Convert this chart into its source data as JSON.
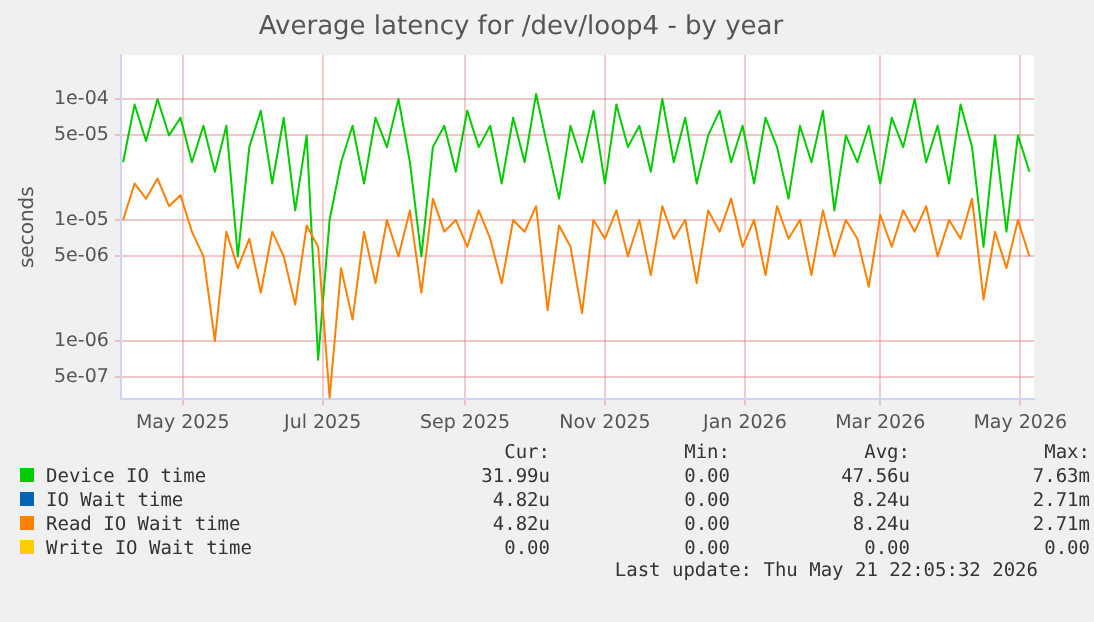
{
  "chart_data": {
    "type": "line",
    "title": "Average latency for /dev/loop4 - by year",
    "ylabel": "seconds",
    "log": "y",
    "grid": true,
    "legend": "bottom",
    "marker": "none",
    "line_style": "solid",
    "xlim": [
      "2025-04-19",
      "2026-05-22"
    ],
    "xticks": [
      {
        "value": "2025-05-16",
        "label": "May 2025"
      },
      {
        "value": "2025-07-16",
        "label": "Jul 2025"
      },
      {
        "value": "2025-09-16",
        "label": "Sep 2025"
      },
      {
        "value": "2025-11-16",
        "label": "Nov 2025"
      },
      {
        "value": "2026-01-16",
        "label": "Jan 2026"
      },
      {
        "value": "2026-03-16",
        "label": "Mar 2026"
      },
      {
        "value": "2026-05-16",
        "label": "May 2026"
      }
    ],
    "ylim": [
      3.3e-07,
      0.00023
    ],
    "yticks": [
      {
        "value": 5e-07,
        "label": "5e-07"
      },
      {
        "value": 1e-06,
        "label": "1e-06"
      },
      {
        "value": 5e-06,
        "label": "5e-06"
      },
      {
        "value": 1e-05,
        "label": "1e-05"
      },
      {
        "value": 5e-05,
        "label": "5e-05"
      },
      {
        "value": 0.0001,
        "label": "1e-04"
      }
    ],
    "x": [
      "2025-04-20",
      "2025-04-25",
      "2025-04-30",
      "2025-05-05",
      "2025-05-10",
      "2025-05-15",
      "2025-05-20",
      "2025-05-25",
      "2025-05-30",
      "2025-06-04",
      "2025-06-09",
      "2025-06-14",
      "2025-06-19",
      "2025-06-24",
      "2025-06-29",
      "2025-07-04",
      "2025-07-09",
      "2025-07-14",
      "2025-07-19",
      "2025-07-24",
      "2025-07-29",
      "2025-08-03",
      "2025-08-08",
      "2025-08-13",
      "2025-08-18",
      "2025-08-23",
      "2025-08-28",
      "2025-09-02",
      "2025-09-07",
      "2025-09-12",
      "2025-09-17",
      "2025-09-22",
      "2025-09-27",
      "2025-10-02",
      "2025-10-07",
      "2025-10-12",
      "2025-10-17",
      "2025-10-22",
      "2025-10-27",
      "2025-11-01",
      "2025-11-06",
      "2025-11-11",
      "2025-11-16",
      "2025-11-21",
      "2025-11-26",
      "2025-12-01",
      "2025-12-06",
      "2025-12-11",
      "2025-12-16",
      "2025-12-21",
      "2025-12-26",
      "2025-12-31",
      "2026-01-05",
      "2026-01-10",
      "2026-01-15",
      "2026-01-20",
      "2026-01-25",
      "2026-01-30",
      "2026-02-04",
      "2026-02-09",
      "2026-02-14",
      "2026-02-19",
      "2026-02-24",
      "2026-03-01",
      "2026-03-06",
      "2026-03-11",
      "2026-03-16",
      "2026-03-21",
      "2026-03-26",
      "2026-03-31",
      "2026-04-05",
      "2026-04-10",
      "2026-04-15",
      "2026-04-20",
      "2026-04-25",
      "2026-04-30",
      "2026-05-05",
      "2026-05-10",
      "2026-05-15",
      "2026-05-20"
    ],
    "series": [
      {
        "name": "Device IO time",
        "color": "#00cc00",
        "values": [
          3e-05,
          9e-05,
          4.5e-05,
          0.0001,
          5e-05,
          7e-05,
          3e-05,
          6e-05,
          2.5e-05,
          6e-05,
          5e-06,
          4e-05,
          8e-05,
          2e-05,
          7e-05,
          1.2e-05,
          5e-05,
          7e-07,
          1e-05,
          3e-05,
          6e-05,
          2e-05,
          7e-05,
          4e-05,
          0.0001,
          3e-05,
          5e-06,
          4e-05,
          6e-05,
          2.5e-05,
          8e-05,
          4e-05,
          6e-05,
          2e-05,
          7e-05,
          3e-05,
          0.00011,
          4e-05,
          1.5e-05,
          6e-05,
          3e-05,
          8e-05,
          2e-05,
          9e-05,
          4e-05,
          6e-05,
          2.5e-05,
          0.0001,
          3e-05,
          7e-05,
          2e-05,
          5e-05,
          8e-05,
          3e-05,
          6e-05,
          2e-05,
          7e-05,
          4e-05,
          1.5e-05,
          6e-05,
          3e-05,
          8e-05,
          1.2e-05,
          5e-05,
          3e-05,
          6e-05,
          2e-05,
          7e-05,
          4e-05,
          0.0001,
          3e-05,
          6e-05,
          2e-05,
          9e-05,
          4e-05,
          6e-06,
          5e-05,
          8e-06,
          5e-05,
          2.5e-05
        ]
      },
      {
        "name": "IO Wait time",
        "color": "#0066b3",
        "values": [
          null,
          null,
          null,
          null,
          null,
          null,
          null,
          null,
          null,
          null,
          null,
          null,
          null,
          null,
          null,
          null,
          null,
          null,
          null,
          null,
          null,
          null,
          null,
          null,
          null,
          null,
          null,
          null,
          null,
          null,
          null,
          null,
          null,
          null,
          null,
          null,
          null,
          null,
          null,
          null,
          null,
          null,
          null,
          null,
          null,
          null,
          null,
          null,
          null,
          null,
          null,
          null,
          null,
          null,
          null,
          null,
          null,
          null,
          null,
          null,
          null,
          null,
          null,
          null,
          null,
          null,
          null,
          null,
          null,
          null,
          null,
          null,
          null,
          null,
          null,
          null,
          null,
          null,
          null,
          null
        ]
      },
      {
        "name": "Read IO Wait time",
        "color": "#ff8000",
        "values": [
          1e-05,
          2e-05,
          1.5e-05,
          2.2e-05,
          1.3e-05,
          1.6e-05,
          8e-06,
          5e-06,
          1e-06,
          8e-06,
          4e-06,
          7e-06,
          2.5e-06,
          8e-06,
          5e-06,
          2e-06,
          9e-06,
          6e-06,
          3.4e-07,
          4e-06,
          1.5e-06,
          8e-06,
          3e-06,
          1e-05,
          5e-06,
          1.2e-05,
          2.5e-06,
          1.5e-05,
          8e-06,
          1e-05,
          6e-06,
          1.2e-05,
          7e-06,
          3e-06,
          1e-05,
          8e-06,
          1.3e-05,
          1.8e-06,
          9e-06,
          6e-06,
          1.7e-06,
          1e-05,
          7e-06,
          1.2e-05,
          5e-06,
          1e-05,
          3.5e-06,
          1.3e-05,
          7e-06,
          1e-05,
          3e-06,
          1.2e-05,
          8e-06,
          1.5e-05,
          6e-06,
          1e-05,
          3.5e-06,
          1.3e-05,
          7e-06,
          1e-05,
          3.5e-06,
          1.2e-05,
          5e-06,
          1e-05,
          7e-06,
          2.8e-06,
          1.1e-05,
          6e-06,
          1.2e-05,
          8e-06,
          1.3e-05,
          5e-06,
          1e-05,
          7e-06,
          1.5e-05,
          2.2e-06,
          8e-06,
          4e-06,
          1e-05,
          5e-06
        ]
      },
      {
        "name": "Write IO Wait time",
        "color": "#ffcc00",
        "values": [
          null,
          null,
          null,
          null,
          null,
          null,
          null,
          null,
          null,
          null,
          null,
          null,
          null,
          null,
          null,
          null,
          null,
          null,
          null,
          null,
          null,
          null,
          null,
          null,
          null,
          null,
          null,
          null,
          null,
          null,
          null,
          null,
          null,
          null,
          null,
          null,
          null,
          null,
          null,
          null,
          null,
          null,
          null,
          null,
          null,
          null,
          null,
          null,
          null,
          null,
          null,
          null,
          null,
          null,
          null,
          null,
          null,
          null,
          null,
          null,
          null,
          null,
          null,
          null,
          null,
          null,
          null,
          null,
          null,
          null,
          null,
          null,
          null,
          null,
          null,
          null,
          null,
          null,
          null,
          null
        ]
      }
    ],
    "annotations": [
      "Cur: Min: Avg: Max:",
      "31.99u 0.00 47.56u 7.63m",
      "4.82u 0.00 8.24u 2.71m",
      "4.82u 0.00 8.24u 2.71m",
      "0.00 0.00 0.00 0.00",
      "Last update: Thu May 21 22:05:32 2026"
    ]
  }
}
